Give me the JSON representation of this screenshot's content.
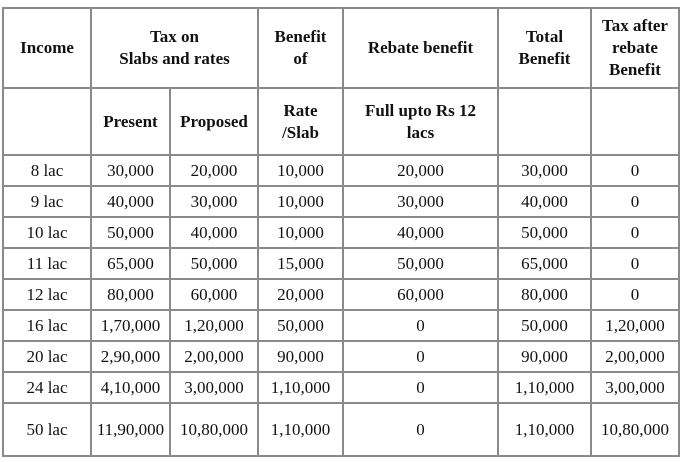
{
  "header": {
    "row1": [
      [
        "Income"
      ],
      [
        "Tax on",
        "Slabs and rates"
      ],
      [
        "Benefit",
        "of"
      ],
      [
        "Rebate benefit"
      ],
      [
        "Total",
        "Benefit"
      ],
      [
        "Tax after",
        "rebate",
        "Benefit"
      ]
    ],
    "row2": {
      "present": "Present",
      "proposed": "Proposed",
      "rate": [
        "Rate",
        "/Slab"
      ],
      "rebate": [
        "Full upto Rs 12",
        "lacs"
      ]
    }
  },
  "table": {
    "rows": [
      [
        "8 lac",
        "30,000",
        "20,000",
        "10,000",
        "20,000",
        "30,000",
        "0"
      ],
      [
        "9 lac",
        "40,000",
        "30,000",
        "10,000",
        "30,000",
        "40,000",
        "0"
      ],
      [
        "10 lac",
        "50,000",
        "40,000",
        "10,000",
        "40,000",
        "50,000",
        "0"
      ],
      [
        "11 lac",
        "65,000",
        "50,000",
        "15,000",
        "50,000",
        "65,000",
        "0"
      ],
      [
        "12 lac",
        "80,000",
        "60,000",
        "20,000",
        "60,000",
        "80,000",
        "0"
      ],
      [
        "16 lac",
        "1,70,000",
        "1,20,000",
        "50,000",
        "0",
        "50,000",
        "1,20,000"
      ],
      [
        "20 lac",
        "2,90,000",
        "2,00,000",
        "90,000",
        "0",
        "90,000",
        "2,00,000"
      ],
      [
        "24 lac",
        "4,10,000",
        "3,00,000",
        "1,10,000",
        "0",
        "1,10,000",
        "3,00,000"
      ],
      [
        "50 lac",
        "11,90,000",
        "10,80,000",
        "1,10,000",
        "0",
        "1,10,000",
        "10,80,000"
      ]
    ]
  }
}
